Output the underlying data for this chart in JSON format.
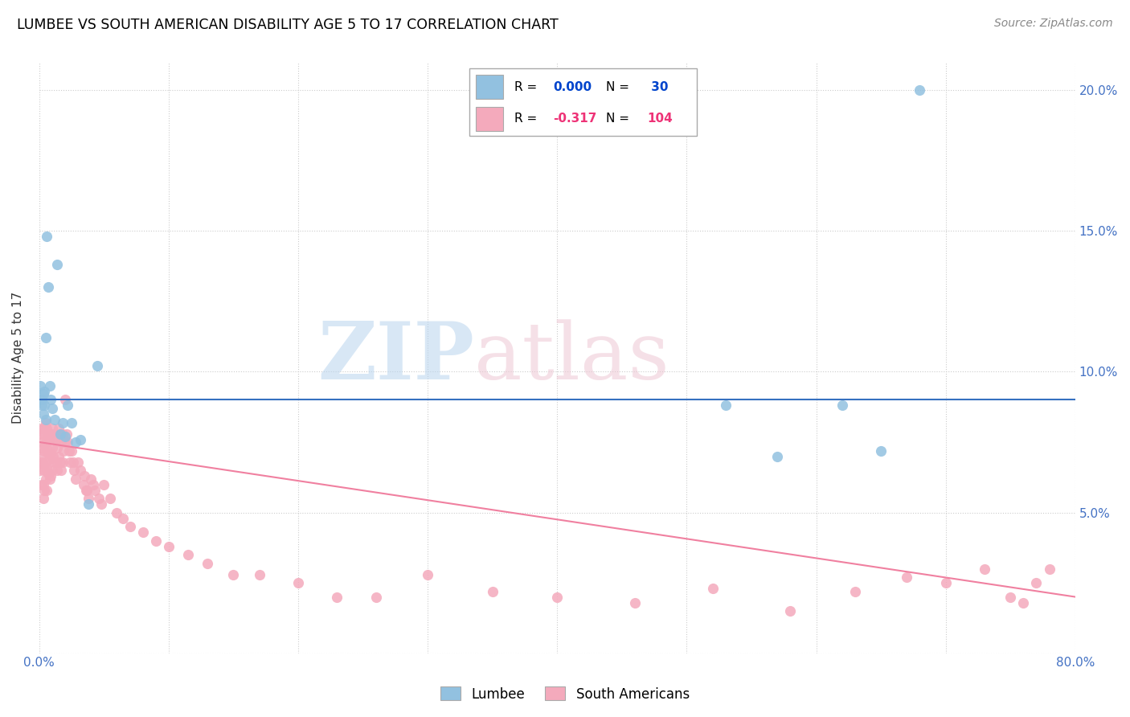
{
  "title": "LUMBEE VS SOUTH AMERICAN DISABILITY AGE 5 TO 17 CORRELATION CHART",
  "source": "Source: ZipAtlas.com",
  "ylabel": "Disability Age 5 to 17",
  "xlim": [
    0,
    0.8
  ],
  "ylim": [
    0,
    0.21
  ],
  "xticks": [
    0.0,
    0.1,
    0.2,
    0.3,
    0.4,
    0.5,
    0.6,
    0.7,
    0.8
  ],
  "xtick_labels": [
    "0.0%",
    "",
    "",
    "",
    "",
    "",
    "",
    "",
    "80.0%"
  ],
  "yticks": [
    0.0,
    0.05,
    0.1,
    0.15,
    0.2
  ],
  "ytick_labels_right": [
    "",
    "5.0%",
    "10.0%",
    "15.0%",
    "20.0%"
  ],
  "lumbee_color": "#92C1E0",
  "south_american_color": "#F4AABC",
  "line_lumbee_color": "#3570C0",
  "line_sa_color": "#F080A0",
  "lumbee_R": 0.0,
  "lumbee_N": 30,
  "south_american_R": -0.317,
  "south_american_N": 104,
  "legend_R_lumbee": "0.000",
  "legend_N_lumbee": "30",
  "legend_R_sa": "-0.317",
  "legend_N_sa": "104",
  "lumbee_x": [
    0.001,
    0.002,
    0.002,
    0.003,
    0.003,
    0.004,
    0.004,
    0.005,
    0.005,
    0.006,
    0.007,
    0.008,
    0.009,
    0.01,
    0.012,
    0.014,
    0.016,
    0.018,
    0.02,
    0.022,
    0.025,
    0.028,
    0.032,
    0.038,
    0.045,
    0.53,
    0.57,
    0.62,
    0.65,
    0.68
  ],
  "lumbee_y": [
    0.095,
    0.09,
    0.088,
    0.092,
    0.085,
    0.093,
    0.088,
    0.083,
    0.112,
    0.148,
    0.13,
    0.095,
    0.09,
    0.087,
    0.083,
    0.138,
    0.078,
    0.082,
    0.077,
    0.088,
    0.082,
    0.075,
    0.076,
    0.053,
    0.102,
    0.088,
    0.07,
    0.088,
    0.072,
    0.2
  ],
  "sa_x": [
    0.001,
    0.001,
    0.001,
    0.002,
    0.002,
    0.002,
    0.002,
    0.003,
    0.003,
    0.003,
    0.003,
    0.003,
    0.004,
    0.004,
    0.004,
    0.004,
    0.005,
    0.005,
    0.005,
    0.005,
    0.006,
    0.006,
    0.006,
    0.006,
    0.007,
    0.007,
    0.007,
    0.008,
    0.008,
    0.008,
    0.009,
    0.009,
    0.009,
    0.01,
    0.01,
    0.01,
    0.011,
    0.011,
    0.012,
    0.012,
    0.013,
    0.013,
    0.014,
    0.014,
    0.015,
    0.015,
    0.016,
    0.016,
    0.017,
    0.017,
    0.018,
    0.018,
    0.019,
    0.02,
    0.02,
    0.021,
    0.022,
    0.023,
    0.024,
    0.025,
    0.026,
    0.027,
    0.028,
    0.03,
    0.032,
    0.034,
    0.036,
    0.038,
    0.04,
    0.043,
    0.046,
    0.05,
    0.055,
    0.06,
    0.065,
    0.07,
    0.08,
    0.09,
    0.1,
    0.115,
    0.13,
    0.15,
    0.17,
    0.2,
    0.23,
    0.26,
    0.3,
    0.35,
    0.4,
    0.46,
    0.52,
    0.58,
    0.63,
    0.67,
    0.7,
    0.73,
    0.75,
    0.76,
    0.77,
    0.78,
    0.035,
    0.037,
    0.042,
    0.048
  ],
  "sa_y": [
    0.078,
    0.07,
    0.065,
    0.08,
    0.075,
    0.068,
    0.06,
    0.08,
    0.073,
    0.067,
    0.06,
    0.055,
    0.078,
    0.072,
    0.065,
    0.058,
    0.082,
    0.075,
    0.068,
    0.062,
    0.08,
    0.073,
    0.066,
    0.058,
    0.078,
    0.071,
    0.064,
    0.076,
    0.069,
    0.062,
    0.078,
    0.071,
    0.063,
    0.08,
    0.073,
    0.065,
    0.078,
    0.07,
    0.076,
    0.068,
    0.076,
    0.068,
    0.073,
    0.065,
    0.08,
    0.07,
    0.078,
    0.068,
    0.075,
    0.065,
    0.078,
    0.068,
    0.072,
    0.09,
    0.075,
    0.078,
    0.075,
    0.072,
    0.068,
    0.072,
    0.068,
    0.065,
    0.062,
    0.068,
    0.065,
    0.06,
    0.058,
    0.055,
    0.062,
    0.058,
    0.055,
    0.06,
    0.055,
    0.05,
    0.048,
    0.045,
    0.043,
    0.04,
    0.038,
    0.035,
    0.032,
    0.028,
    0.028,
    0.025,
    0.02,
    0.02,
    0.028,
    0.022,
    0.02,
    0.018,
    0.023,
    0.015,
    0.022,
    0.027,
    0.025,
    0.03,
    0.02,
    0.018,
    0.025,
    0.03,
    0.063,
    0.058,
    0.06,
    0.053
  ]
}
